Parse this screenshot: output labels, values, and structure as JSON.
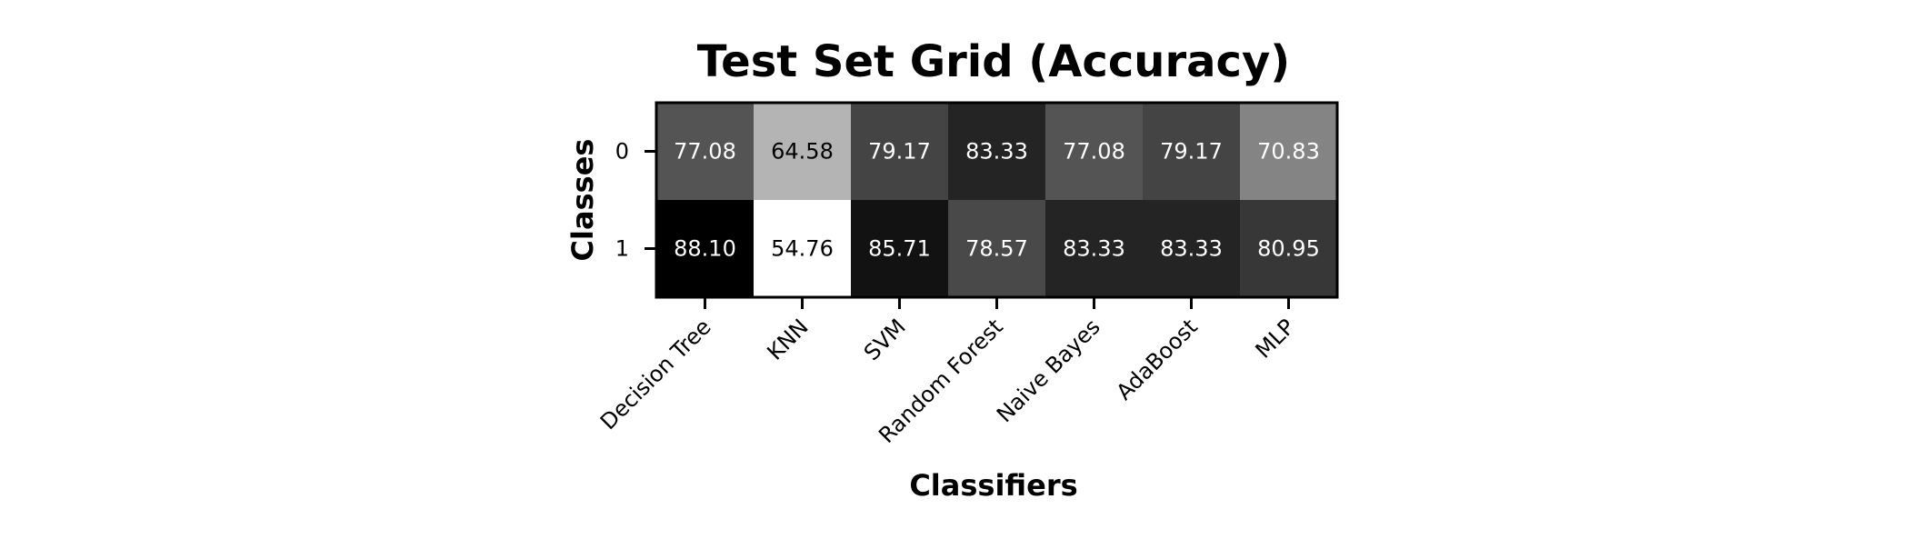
{
  "chart_data": {
    "type": "heatmap",
    "title": "Test Set Grid (Accuracy)",
    "xlabel": "Classifiers",
    "ylabel": "Classes",
    "x_categories": [
      "Decision Tree",
      "KNN",
      "SVM",
      "Random Forest",
      "Naive Bayes",
      "AdaBoost",
      "MLP"
    ],
    "y_categories": [
      "0",
      "1"
    ],
    "values": [
      [
        77.08,
        64.58,
        79.17,
        83.33,
        77.08,
        79.17,
        70.83
      ],
      [
        88.1,
        54.76,
        85.71,
        78.57,
        83.33,
        83.33,
        80.95
      ]
    ],
    "value_labels": [
      [
        "77.08",
        "64.58",
        "79.17",
        "83.33",
        "77.08",
        "79.17",
        "70.83"
      ],
      [
        "88.10",
        "54.76",
        "85.71",
        "78.57",
        "83.33",
        "83.33",
        "80.95"
      ]
    ],
    "colormap": "grayscale, high values dark",
    "value_range": [
      54.76,
      88.1
    ],
    "colors": {
      "high": "#000000",
      "low": "#ffffff",
      "text_on_dark": "#ffffff",
      "text_on_light": "#000000"
    },
    "grid": false,
    "legend": "none"
  }
}
